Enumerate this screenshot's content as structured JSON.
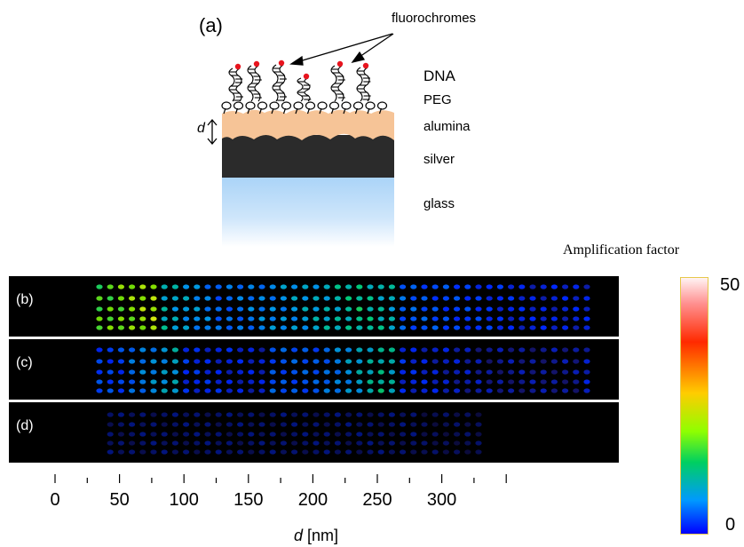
{
  "schematic": {
    "panel_label": "(a)",
    "fluorochromes_label": "fluorochromes",
    "d_label": "d",
    "layers": [
      "DNA",
      "PEG",
      "alumina",
      "silver",
      "glass"
    ],
    "colors": {
      "fluorochrome": "#e8141e",
      "alumina": "#f6c497",
      "silver": "#2b2b2b",
      "glass": "#a9d3f7"
    }
  },
  "colorbar": {
    "title": "Amplification factor",
    "max_label": "50",
    "min_label": "0",
    "min": 0,
    "max": 50
  },
  "panels": [
    {
      "label": "(b)"
    },
    {
      "label": "(c)"
    },
    {
      "label": "(d)"
    }
  ],
  "axis": {
    "ticks": [
      "0",
      "50",
      "100",
      "150",
      "200",
      "250",
      "300"
    ],
    "label_var": "d",
    "label_unit": " [nm]"
  }
}
